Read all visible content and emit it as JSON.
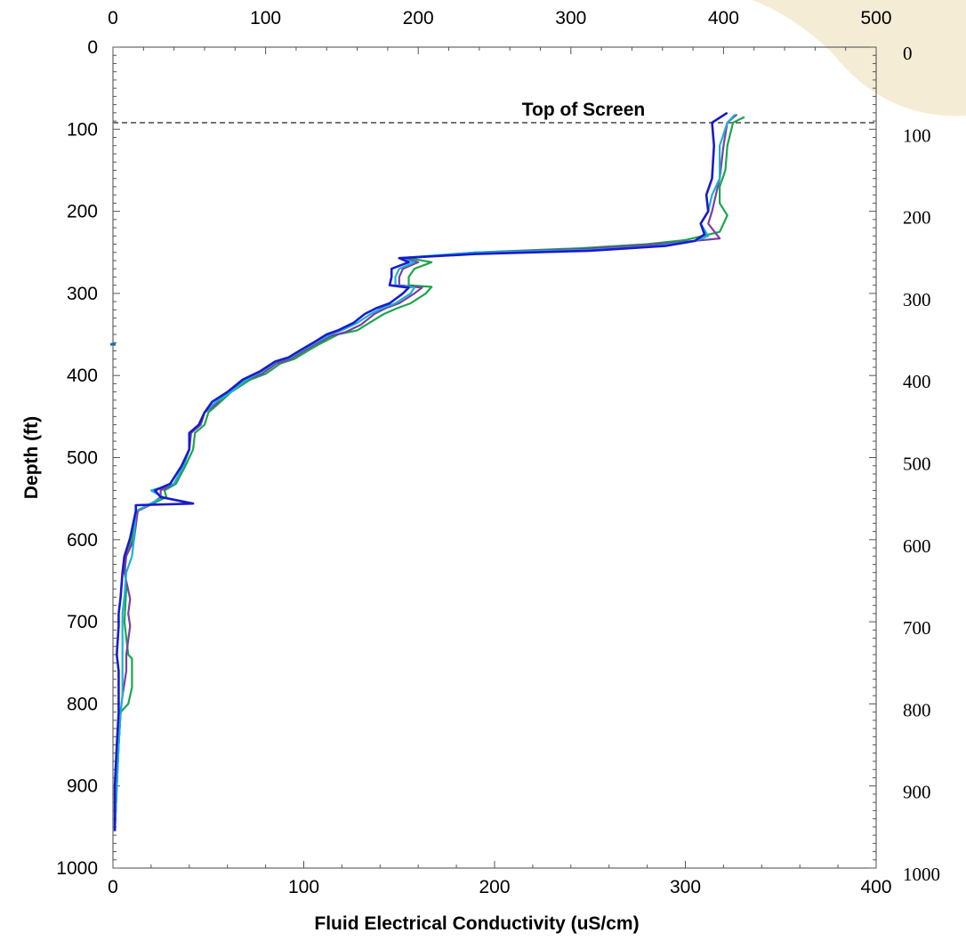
{
  "chart_data": {
    "type": "line",
    "orientation": "depth-profile",
    "xlabel": "Fluid Electrical Conductivity (uS/cm)",
    "ylabel": "Depth (ft)",
    "xlim": [
      0,
      400
    ],
    "top_axis_lim": [
      0,
      500
    ],
    "ylim": [
      0,
      1000
    ],
    "y_inverted": true,
    "grid": false,
    "legend": "none",
    "x_ticks": [
      "0",
      "100",
      "200",
      "300",
      "400"
    ],
    "top_ticks": [
      "0",
      "100",
      "200",
      "300",
      "400",
      "500"
    ],
    "y_ticks": [
      "0",
      "100",
      "200",
      "300",
      "400",
      "500",
      "600",
      "700",
      "800",
      "900",
      "1000"
    ],
    "annotations": [
      {
        "text": "Top of Screen",
        "depth": 92,
        "style": "dashed horizontal line"
      }
    ],
    "series": [
      {
        "color": "#1aa64a",
        "points": [
          [
            1,
            955
          ],
          [
            2,
            900
          ],
          [
            3,
            850
          ],
          [
            4,
            810
          ],
          [
            8,
            800
          ],
          [
            10,
            780
          ],
          [
            10,
            745
          ],
          [
            8,
            740
          ],
          [
            6,
            700
          ],
          [
            7,
            660
          ],
          [
            6,
            620
          ],
          [
            10,
            600
          ],
          [
            12,
            565
          ],
          [
            20,
            557
          ],
          [
            28,
            548
          ],
          [
            27,
            540
          ],
          [
            33,
            532
          ],
          [
            38,
            510
          ],
          [
            42,
            490
          ],
          [
            43,
            470
          ],
          [
            48,
            460
          ],
          [
            50,
            445
          ],
          [
            55,
            435
          ],
          [
            62,
            420
          ],
          [
            72,
            405
          ],
          [
            80,
            398
          ],
          [
            88,
            385
          ],
          [
            95,
            380
          ],
          [
            102,
            370
          ],
          [
            108,
            362
          ],
          [
            118,
            350
          ],
          [
            128,
            345
          ],
          [
            135,
            335
          ],
          [
            142,
            325
          ],
          [
            149,
            318
          ],
          [
            156,
            312
          ],
          [
            164,
            300
          ],
          [
            167,
            292
          ],
          [
            155,
            290
          ],
          [
            155,
            280
          ],
          [
            158,
            270
          ],
          [
            167,
            262
          ],
          [
            155,
            257
          ],
          [
            190,
            250
          ],
          [
            245,
            245
          ],
          [
            280,
            240
          ],
          [
            300,
            235
          ],
          [
            318,
            225
          ],
          [
            322,
            205
          ],
          [
            318,
            190
          ],
          [
            318,
            170
          ],
          [
            321,
            150
          ],
          [
            322,
            120
          ],
          [
            325,
            92
          ],
          [
            331,
            85
          ]
        ]
      },
      {
        "color": "#7b3fa0",
        "points": [
          [
            1,
            955
          ],
          [
            2,
            900
          ],
          [
            3,
            850
          ],
          [
            4,
            810
          ],
          [
            5,
            790
          ],
          [
            7,
            760
          ],
          [
            7,
            740
          ],
          [
            9,
            705
          ],
          [
            8,
            690
          ],
          [
            9,
            672
          ],
          [
            6,
            640
          ],
          [
            7,
            620
          ],
          [
            11,
            600
          ],
          [
            13,
            565
          ],
          [
            20,
            557
          ],
          [
            25,
            548
          ],
          [
            25,
            540
          ],
          [
            32,
            532
          ],
          [
            37,
            510
          ],
          [
            40,
            490
          ],
          [
            41,
            470
          ],
          [
            46,
            460
          ],
          [
            48,
            445
          ],
          [
            54,
            435
          ],
          [
            60,
            420
          ],
          [
            70,
            405
          ],
          [
            78,
            398
          ],
          [
            86,
            385
          ],
          [
            93,
            380
          ],
          [
            100,
            370
          ],
          [
            106,
            362
          ],
          [
            114,
            352
          ],
          [
            122,
            347
          ],
          [
            130,
            338
          ],
          [
            137,
            325
          ],
          [
            143,
            318
          ],
          [
            150,
            312
          ],
          [
            158,
            300
          ],
          [
            162,
            293
          ],
          [
            150,
            290
          ],
          [
            150,
            280
          ],
          [
            152,
            270
          ],
          [
            160,
            262
          ],
          [
            152,
            257
          ],
          [
            190,
            250
          ],
          [
            245,
            246
          ],
          [
            280,
            241
          ],
          [
            305,
            236
          ],
          [
            318,
            233
          ],
          [
            312,
            215
          ],
          [
            314,
            200
          ],
          [
            316,
            180
          ],
          [
            318,
            160
          ],
          [
            320,
            120
          ],
          [
            322,
            92
          ],
          [
            327,
            82
          ]
        ]
      },
      {
        "color": "#1ab0d8",
        "points": [
          [
            1,
            955
          ],
          [
            2,
            900
          ],
          [
            3,
            850
          ],
          [
            4,
            810
          ],
          [
            5,
            790
          ],
          [
            5,
            760
          ],
          [
            5,
            740
          ],
          [
            5,
            705
          ],
          [
            5,
            690
          ],
          [
            6,
            670
          ],
          [
            7,
            640
          ],
          [
            10,
            620
          ],
          [
            11,
            600
          ],
          [
            12,
            565
          ],
          [
            19,
            557
          ],
          [
            26,
            548
          ],
          [
            20,
            540
          ],
          [
            32,
            532
          ],
          [
            37,
            510
          ],
          [
            40,
            490
          ],
          [
            40,
            470
          ],
          [
            45,
            460
          ],
          [
            48,
            445
          ],
          [
            54,
            432
          ],
          [
            62,
            420
          ],
          [
            70,
            405
          ],
          [
            78,
            395
          ],
          [
            86,
            383
          ],
          [
            93,
            378
          ],
          [
            100,
            368
          ],
          [
            106,
            360
          ],
          [
            114,
            350
          ],
          [
            120,
            345
          ],
          [
            128,
            336
          ],
          [
            135,
            325
          ],
          [
            141,
            318
          ],
          [
            148,
            312
          ],
          [
            156,
            300
          ],
          [
            158,
            293
          ],
          [
            148,
            290
          ],
          [
            148,
            280
          ],
          [
            150,
            270
          ],
          [
            158,
            262
          ],
          [
            150,
            257
          ],
          [
            190,
            250
          ],
          [
            250,
            247
          ],
          [
            285,
            242
          ],
          [
            305,
            236
          ],
          [
            312,
            230
          ],
          [
            308,
            215
          ],
          [
            312,
            200
          ],
          [
            314,
            180
          ],
          [
            318,
            160
          ],
          [
            318,
            120
          ],
          [
            322,
            92
          ],
          [
            326,
            82
          ]
        ]
      },
      {
        "color": "#1a1acc",
        "points": [
          [
            1,
            955
          ],
          [
            1,
            900
          ],
          [
            2,
            850
          ],
          [
            3,
            810
          ],
          [
            3,
            790
          ],
          [
            3,
            760
          ],
          [
            2,
            740
          ],
          [
            3,
            705
          ],
          [
            3,
            690
          ],
          [
            4,
            670
          ],
          [
            5,
            640
          ],
          [
            6,
            620
          ],
          [
            9,
            598
          ],
          [
            12,
            565
          ],
          [
            12,
            558
          ],
          [
            42,
            556
          ],
          [
            25,
            548
          ],
          [
            22,
            540
          ],
          [
            30,
            532
          ],
          [
            36,
            510
          ],
          [
            40,
            490
          ],
          [
            40,
            470
          ],
          [
            45,
            460
          ],
          [
            48,
            445
          ],
          [
            52,
            432
          ],
          [
            60,
            420
          ],
          [
            68,
            405
          ],
          [
            77,
            395
          ],
          [
            85,
            383
          ],
          [
            92,
            378
          ],
          [
            99,
            368
          ],
          [
            105,
            360
          ],
          [
            112,
            350
          ],
          [
            118,
            345
          ],
          [
            126,
            336
          ],
          [
            132,
            325
          ],
          [
            138,
            318
          ],
          [
            145,
            312
          ],
          [
            152,
            300
          ],
          [
            155,
            293
          ],
          [
            145,
            290
          ],
          [
            146,
            280
          ],
          [
            146,
            270
          ],
          [
            155,
            262
          ],
          [
            150,
            257
          ],
          [
            190,
            252
          ],
          [
            250,
            248
          ],
          [
            290,
            242
          ],
          [
            305,
            236
          ],
          [
            310,
            228
          ],
          [
            308,
            215
          ],
          [
            312,
            200
          ],
          [
            311,
            180
          ],
          [
            314,
            160
          ],
          [
            315,
            120
          ],
          [
            314,
            92
          ],
          [
            322,
            80
          ]
        ]
      }
    ]
  }
}
